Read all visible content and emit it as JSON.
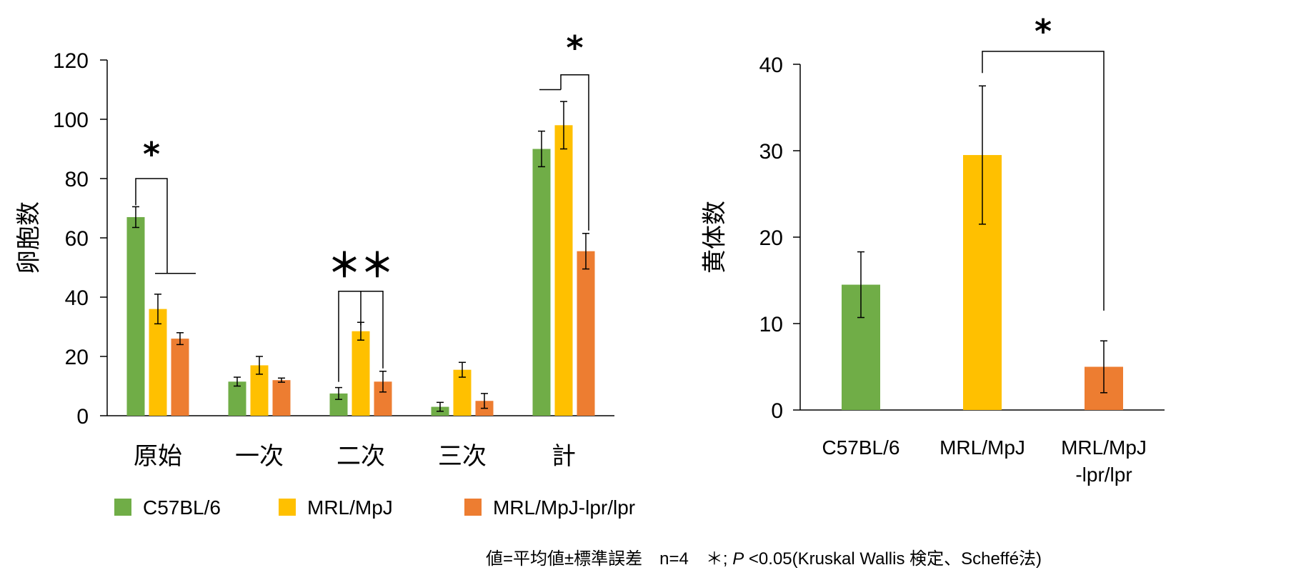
{
  "colors": {
    "C57BL/6": "#70ad47",
    "MRL/MpJ": "#ffc000",
    "MRL/MpJ-lpr/lpr": "#ed7d31"
  },
  "chart_data": [
    {
      "type": "bar",
      "ylabel": "卵胞数",
      "ylim": [
        0,
        120
      ],
      "yticks": [
        0,
        20,
        40,
        60,
        80,
        100,
        120
      ],
      "categories": [
        "原始",
        "一次",
        "二次",
        "三次",
        "計"
      ],
      "series": [
        {
          "name": "C57BL/6",
          "values": [
            67,
            11.5,
            7.5,
            3,
            90
          ],
          "errors": [
            3.5,
            1.5,
            2,
            1.5,
            6
          ]
        },
        {
          "name": "MRL/MpJ",
          "values": [
            36,
            17,
            28.5,
            15.5,
            98
          ],
          "errors": [
            5,
            3,
            3,
            2.5,
            8
          ]
        },
        {
          "name": "MRL/MpJ-lpr/lpr",
          "values": [
            26,
            12,
            11.5,
            5,
            55.5
          ],
          "errors": [
            2,
            0.7,
            3.5,
            2.5,
            6
          ]
        }
      ],
      "significance": [
        {
          "label": "*",
          "category": "原始"
        },
        {
          "label": "＊＊",
          "category": "二次"
        },
        {
          "label": "*",
          "category": "計"
        }
      ],
      "legend_position": "bottom"
    },
    {
      "type": "bar",
      "ylabel": "黄体数",
      "ylim": [
        0,
        40
      ],
      "yticks": [
        0,
        10,
        20,
        30,
        40
      ],
      "categories": [
        "C57BL/6",
        "MRL/MpJ",
        "MRL/MpJ -lpr/lpr"
      ],
      "category_lines": [
        [
          "C57BL/6"
        ],
        [
          "MRL/MpJ"
        ],
        [
          "MRL/MpJ",
          "-lpr/lpr"
        ]
      ],
      "values": [
        14.5,
        29.5,
        5
      ],
      "errors": [
        3.8,
        8,
        3
      ],
      "significance": [
        {
          "label": "*",
          "between": [
            "MRL/MpJ",
            "MRL/MpJ -lpr/lpr"
          ]
        }
      ]
    }
  ],
  "legend": [
    "C57BL/6",
    "MRL/MpJ",
    "MRL/MpJ-lpr/lpr"
  ],
  "footnote": {
    "part1": "値=平均値±標準誤差　n=4　＊; ",
    "p": "P",
    "part2": " <0.05(Kruskal Wallis 検定、Scheffé法)"
  }
}
